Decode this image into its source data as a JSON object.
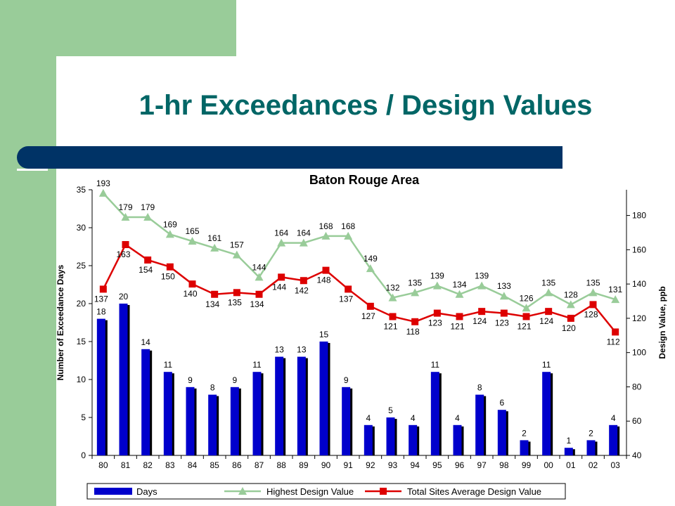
{
  "slide": {
    "title": "1-hr Exceedances / Design Values"
  },
  "colors": {
    "accent_green": "#99cc99",
    "title_teal": "#006666",
    "bar_navy": "#003366",
    "days": "#0000cc",
    "highest": "#99cc99",
    "average": "#dd0000"
  },
  "chart_data": {
    "type": "bar",
    "title": "Baton Rouge Area",
    "categories": [
      "80",
      "81",
      "82",
      "83",
      "84",
      "85",
      "86",
      "87",
      "88",
      "89",
      "90",
      "91",
      "92",
      "93",
      "94",
      "95",
      "96",
      "97",
      "98",
      "99",
      "00",
      "01",
      "02",
      "03"
    ],
    "ylabel": "Number of Exceedance Days",
    "y2label": "Design Value, ppb",
    "ylim": [
      0,
      35
    ],
    "y2lim": [
      40,
      195
    ],
    "yticks": [
      0,
      5,
      10,
      15,
      20,
      25,
      30,
      35
    ],
    "y2ticks": [
      40,
      60,
      80,
      100,
      120,
      140,
      160,
      180
    ],
    "grid": false,
    "legend_position": "bottom",
    "series": [
      {
        "name": "Days",
        "type": "bar",
        "axis": "left",
        "values": [
          18,
          20,
          14,
          11,
          9,
          8,
          9,
          11,
          13,
          13,
          15,
          9,
          4,
          5,
          4,
          11,
          4,
          8,
          6,
          2,
          11,
          1,
          2,
          4
        ]
      },
      {
        "name": "Highest Design Value",
        "type": "line",
        "axis": "right",
        "marker": "triangle",
        "values": [
          193,
          179,
          179,
          169,
          165,
          161,
          157,
          144,
          164,
          164,
          168,
          168,
          149,
          132,
          135,
          139,
          134,
          139,
          133,
          126,
          135,
          128,
          135,
          131
        ]
      },
      {
        "name": "Total Sites Average Design Value",
        "type": "line",
        "axis": "right",
        "marker": "square",
        "values": [
          137,
          163,
          154,
          150,
          140,
          134,
          135,
          134,
          144,
          142,
          148,
          137,
          127,
          121,
          118,
          123,
          121,
          124,
          123,
          121,
          124,
          120,
          128,
          112
        ]
      }
    ]
  }
}
